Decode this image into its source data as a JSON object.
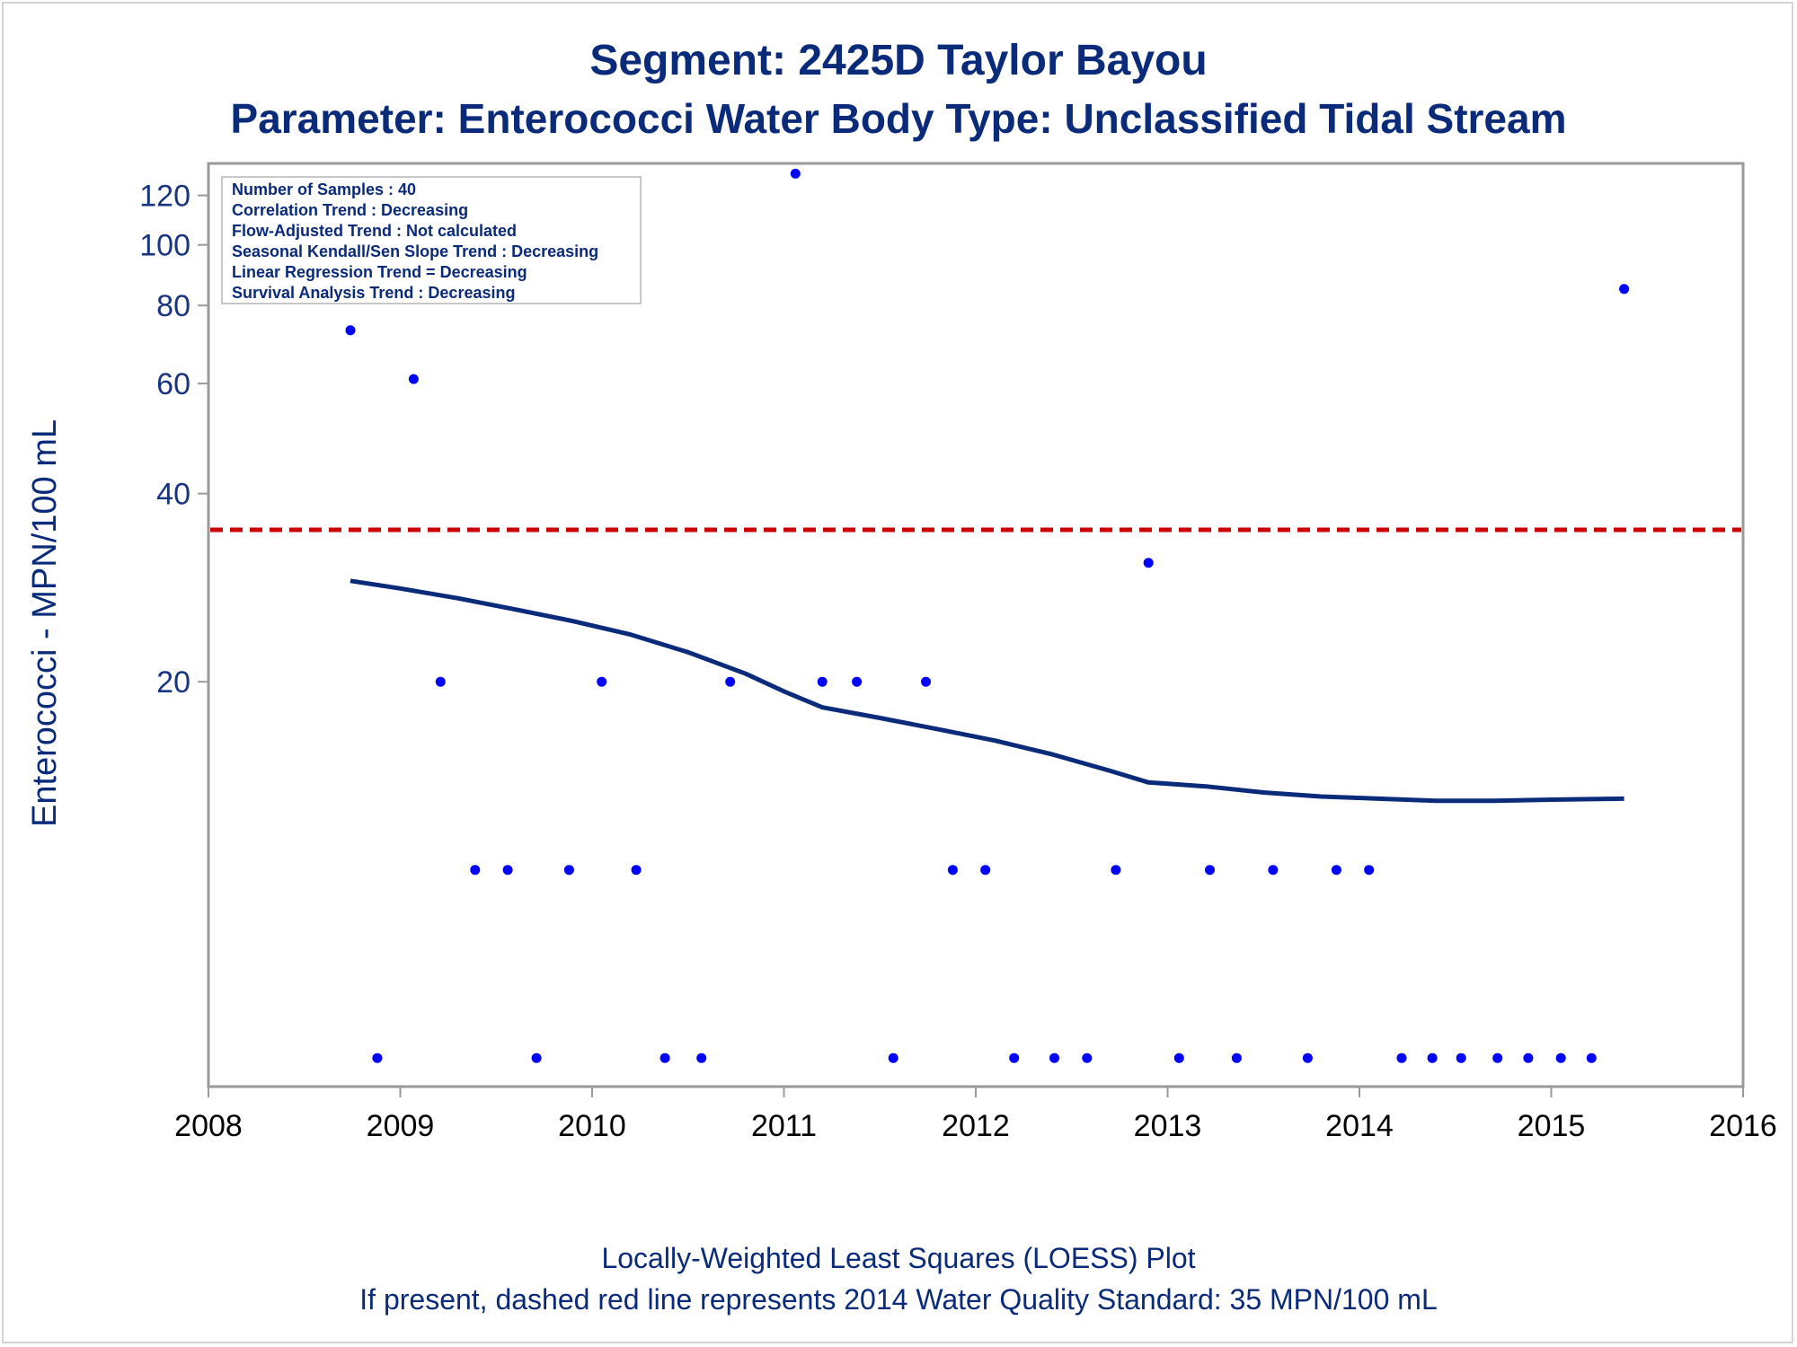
{
  "colors": {
    "title": "#0a2a7a",
    "y_tick": "#1a3580",
    "x_tick": "#000000",
    "footnote": "#0a2a7a",
    "axis_line": "#9a9a9a",
    "points": "#0000ff",
    "loess": "#0a2a7a",
    "standard_line": "#cc0000",
    "stats_border": "#c8c8c8"
  },
  "stats_box": {
    "lines": [
      "Number of Samples : 40",
      "Correlation Trend : Decreasing",
      "Flow-Adjusted Trend : Not calculated",
      "Seasonal Kendall/Sen Slope Trend : Decreasing",
      "Linear Regression Trend = Decreasing",
      "Survival Analysis Trend : Decreasing"
    ]
  },
  "chart_data": {
    "type": "scatter",
    "title": "Segment: 2425D  Taylor Bayou",
    "subtitle": "Parameter: Enterococci   Water Body Type: Unclassified Tidal Stream",
    "xlabel": "",
    "ylabel": "Enterococci - MPN/100 mL",
    "y_scale": "log",
    "xlim": [
      2008,
      2016
    ],
    "ylim": [
      4.5,
      135
    ],
    "x_ticks": [
      2008,
      2009,
      2010,
      2011,
      2012,
      2013,
      2014,
      2015,
      2016
    ],
    "y_ticks": [
      20,
      40,
      60,
      80,
      100,
      120
    ],
    "grid": false,
    "series": [
      {
        "kind": "scatter",
        "points": [
          [
            2008.74,
            73
          ],
          [
            2008.88,
            5
          ],
          [
            2009.07,
            61
          ],
          [
            2009.21,
            20
          ],
          [
            2009.39,
            10
          ],
          [
            2009.56,
            10
          ],
          [
            2009.71,
            5
          ],
          [
            2009.88,
            10
          ],
          [
            2010.05,
            20
          ],
          [
            2010.23,
            10
          ],
          [
            2010.38,
            5
          ],
          [
            2010.57,
            5
          ],
          [
            2010.72,
            20
          ],
          [
            2011.06,
            130
          ],
          [
            2011.2,
            20
          ],
          [
            2011.38,
            20
          ],
          [
            2011.57,
            5
          ],
          [
            2011.74,
            20
          ],
          [
            2011.88,
            10
          ],
          [
            2012.05,
            10
          ],
          [
            2012.2,
            5
          ],
          [
            2012.41,
            5
          ],
          [
            2012.58,
            5
          ],
          [
            2012.73,
            10
          ],
          [
            2012.9,
            31
          ],
          [
            2013.06,
            5
          ],
          [
            2013.22,
            10
          ],
          [
            2013.36,
            5
          ],
          [
            2013.55,
            10
          ],
          [
            2013.73,
            5
          ],
          [
            2013.88,
            10
          ],
          [
            2014.05,
            10
          ],
          [
            2014.22,
            5
          ],
          [
            2014.38,
            5
          ],
          [
            2014.53,
            5
          ],
          [
            2014.72,
            5
          ],
          [
            2014.88,
            5
          ],
          [
            2015.05,
            5
          ],
          [
            2015.21,
            5
          ],
          [
            2015.38,
            85
          ]
        ]
      },
      {
        "kind": "loess",
        "points": [
          [
            2008.74,
            29
          ],
          [
            2009.0,
            28.2
          ],
          [
            2009.3,
            27.2
          ],
          [
            2009.6,
            26.1
          ],
          [
            2009.9,
            25.0
          ],
          [
            2010.2,
            23.8
          ],
          [
            2010.5,
            22.3
          ],
          [
            2010.8,
            20.6
          ],
          [
            2011.0,
            19.3
          ],
          [
            2011.2,
            18.2
          ],
          [
            2011.5,
            17.5
          ],
          [
            2011.8,
            16.8
          ],
          [
            2012.1,
            16.1
          ],
          [
            2012.4,
            15.3
          ],
          [
            2012.7,
            14.4
          ],
          [
            2012.9,
            13.8
          ],
          [
            2013.2,
            13.6
          ],
          [
            2013.5,
            13.3
          ],
          [
            2013.8,
            13.1
          ],
          [
            2014.1,
            13.0
          ],
          [
            2014.4,
            12.9
          ],
          [
            2014.7,
            12.9
          ],
          [
            2015.0,
            12.95
          ],
          [
            2015.38,
            13.0
          ]
        ]
      }
    ],
    "reference_line": {
      "y": 35,
      "style": "dashed",
      "color": "red"
    },
    "footnotes": [
      "Locally-Weighted Least Squares (LOESS) Plot",
      "If present, dashed red line represents 2014 Water Quality Standard: 35 MPN/100 mL"
    ]
  }
}
